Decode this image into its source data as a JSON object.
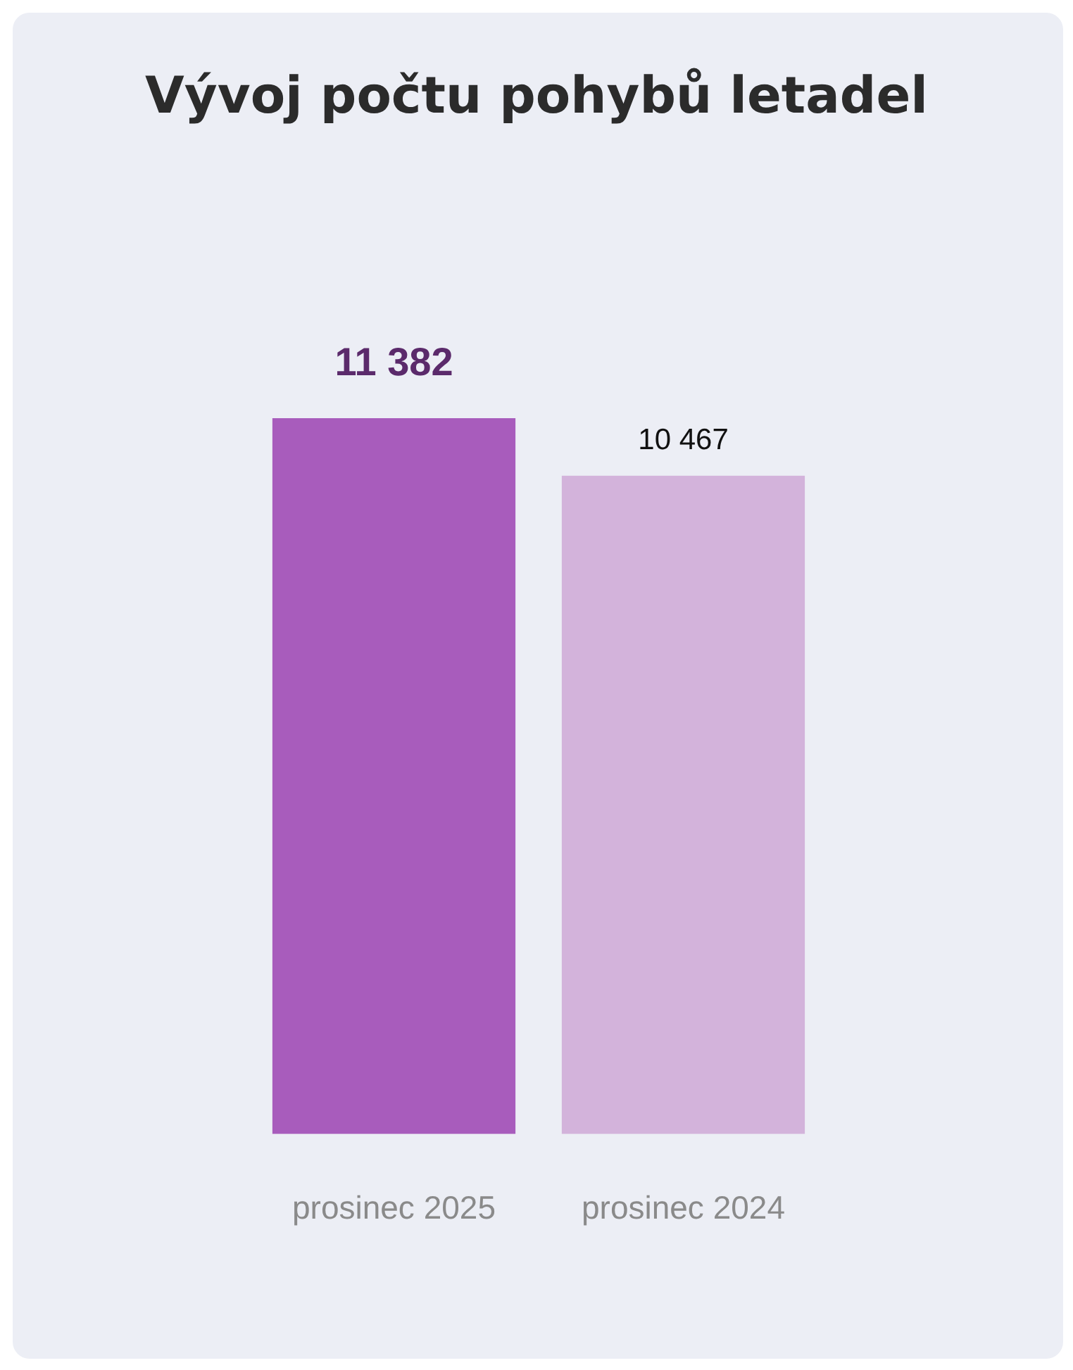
{
  "chart_data": {
    "type": "bar",
    "title": "Vývoj počtu pohybů letadel",
    "categories": [
      "prosinec 2025",
      "prosinec 2024"
    ],
    "values": [
      11382,
      10467
    ],
    "value_labels": [
      "11 382",
      "10 467"
    ],
    "colors": [
      "#a85cbc",
      "#d3b3db"
    ],
    "grid": false,
    "legend": false
  }
}
